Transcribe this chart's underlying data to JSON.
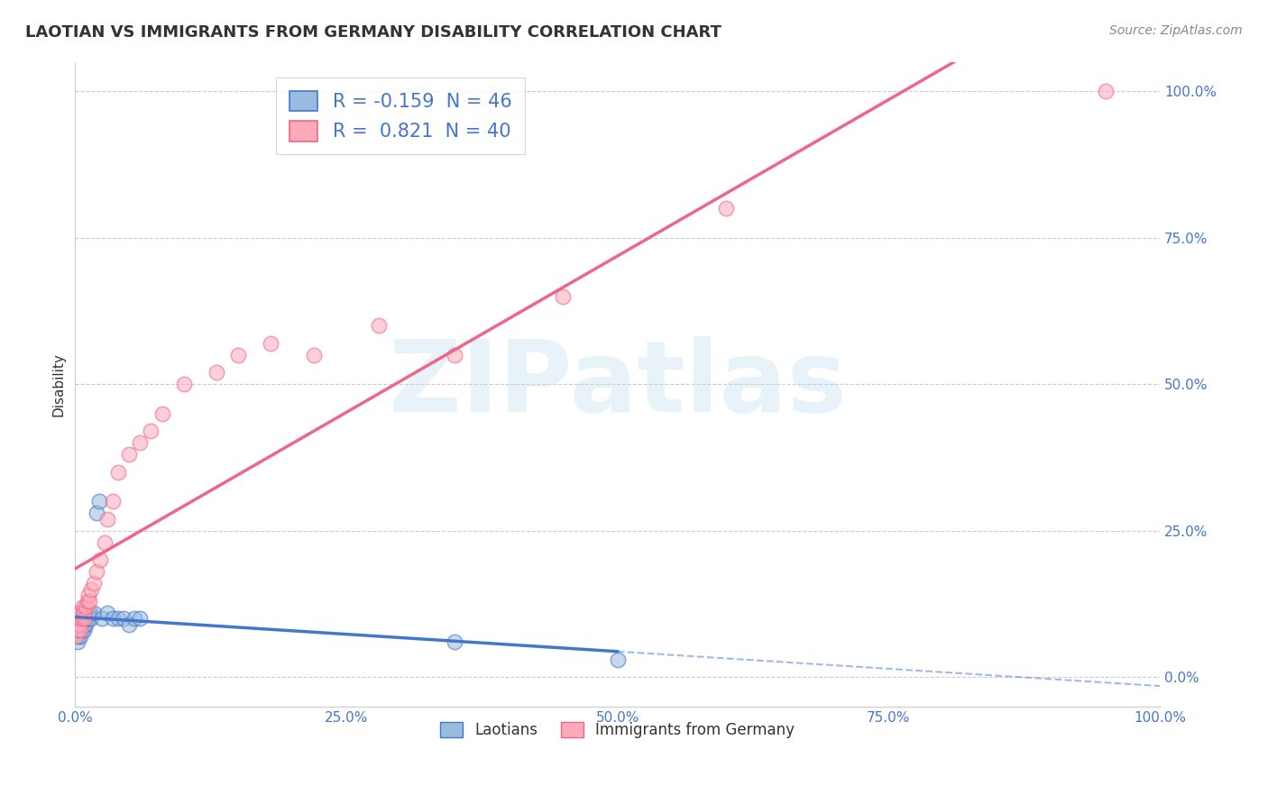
{
  "title": "LAOTIAN VS IMMIGRANTS FROM GERMANY DISABILITY CORRELATION CHART",
  "source": "Source: ZipAtlas.com",
  "ylabel": "Disability",
  "watermark": "ZIPatlas",
  "laotian_R": -0.159,
  "laotian_N": 46,
  "germany_R": 0.821,
  "germany_N": 40,
  "laotian_color": "#99BBDD",
  "germany_color": "#FFAABB",
  "laotian_line_color": "#4477CC",
  "germany_line_color": "#EE6688",
  "laotian_x": [
    0.001,
    0.001,
    0.002,
    0.002,
    0.002,
    0.003,
    0.003,
    0.003,
    0.003,
    0.004,
    0.004,
    0.004,
    0.005,
    0.005,
    0.005,
    0.005,
    0.006,
    0.006,
    0.007,
    0.007,
    0.007,
    0.008,
    0.008,
    0.008,
    0.009,
    0.009,
    0.01,
    0.01,
    0.011,
    0.012,
    0.013,
    0.014,
    0.015,
    0.017,
    0.02,
    0.022,
    0.025,
    0.03,
    0.035,
    0.04,
    0.045,
    0.05,
    0.055,
    0.06,
    0.35,
    0.5
  ],
  "laotian_y": [
    0.07,
    0.08,
    0.06,
    0.08,
    0.09,
    0.07,
    0.08,
    0.09,
    0.1,
    0.08,
    0.09,
    0.1,
    0.07,
    0.08,
    0.09,
    0.1,
    0.09,
    0.1,
    0.08,
    0.09,
    0.11,
    0.08,
    0.09,
    0.1,
    0.09,
    0.1,
    0.09,
    0.1,
    0.1,
    0.11,
    0.1,
    0.11,
    0.1,
    0.11,
    0.28,
    0.3,
    0.1,
    0.11,
    0.1,
    0.1,
    0.1,
    0.09,
    0.1,
    0.1,
    0.06,
    0.03
  ],
  "germany_x": [
    0.001,
    0.001,
    0.002,
    0.002,
    0.003,
    0.003,
    0.004,
    0.004,
    0.005,
    0.005,
    0.006,
    0.007,
    0.008,
    0.009,
    0.01,
    0.011,
    0.012,
    0.013,
    0.015,
    0.017,
    0.02,
    0.023,
    0.027,
    0.03,
    0.035,
    0.04,
    0.05,
    0.06,
    0.07,
    0.08,
    0.1,
    0.13,
    0.15,
    0.18,
    0.22,
    0.28,
    0.35,
    0.45,
    0.6,
    0.95
  ],
  "germany_y": [
    0.07,
    0.09,
    0.08,
    0.1,
    0.09,
    0.11,
    0.09,
    0.1,
    0.08,
    0.11,
    0.1,
    0.12,
    0.11,
    0.1,
    0.12,
    0.13,
    0.14,
    0.13,
    0.15,
    0.16,
    0.18,
    0.2,
    0.23,
    0.27,
    0.3,
    0.35,
    0.38,
    0.4,
    0.42,
    0.45,
    0.5,
    0.52,
    0.55,
    0.57,
    0.55,
    0.6,
    0.55,
    0.65,
    0.8,
    1.0
  ],
  "xlim": [
    0.0,
    1.0
  ],
  "ylim": [
    -0.05,
    1.05
  ],
  "xticks": [
    0.0,
    0.25,
    0.5,
    0.75,
    1.0
  ],
  "xticklabels": [
    "0.0%",
    "25.0%",
    "50.0%",
    "75.0%",
    "100.0%"
  ],
  "yticks": [
    0.0,
    0.25,
    0.5,
    0.75,
    1.0
  ],
  "yticklabels": [
    "0.0%",
    "25.0%",
    "50.0%",
    "75.0%",
    "100.0%"
  ],
  "grid_color": "#CCCCCC",
  "background_color": "#FFFFFF",
  "legend_blue_label": "R = -0.159  N = 46",
  "legend_pink_label": "R =  0.821  N = 40",
  "bottom_legend_1": "Laotians",
  "bottom_legend_2": "Immigrants from Germany"
}
